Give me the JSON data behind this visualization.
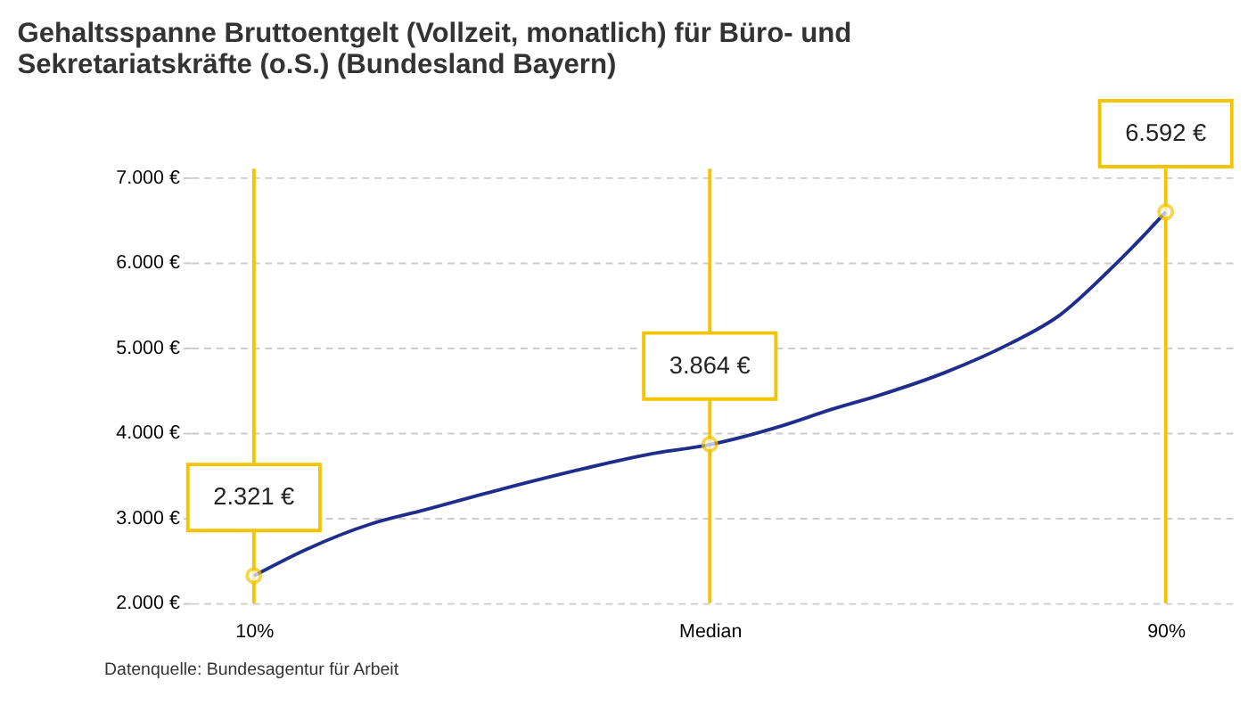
{
  "chart_data": {
    "type": "line",
    "title": "Gehaltsspanne Bruttoentgelt (Vollzeit, monatlich) für Büro- und Sekretariatskräfte (o.S.) (Bundesland Bayern)",
    "xlim": [
      4.5,
      96
    ],
    "xticks": [
      {
        "value": 10,
        "label": "10%"
      },
      {
        "value": 50,
        "label": "Median"
      },
      {
        "value": 90,
        "label": "90%"
      }
    ],
    "ylim": [
      2000,
      7100
    ],
    "yticks": [
      {
        "value": 2000,
        "label": "2.000 €"
      },
      {
        "value": 3000,
        "label": "3.000 €"
      },
      {
        "value": 4000,
        "label": "4.000 €"
      },
      {
        "value": 5000,
        "label": "5.000 €"
      },
      {
        "value": 6000,
        "label": "6.000 €"
      },
      {
        "value": 7000,
        "label": "7.000 €"
      }
    ],
    "grid": "y",
    "series": [
      {
        "color": "#1f2d8c",
        "marker": "none",
        "x": [
          10,
          14.6,
          20.3,
          24.6,
          31.8,
          39,
          44.8,
          50,
          56.3,
          60.6,
          64.9,
          70.7,
          76.4,
          80.7,
          85,
          87.9,
          90
        ],
        "values": [
          2320,
          2630,
          2930,
          3080,
          3340,
          3580,
          3750,
          3860,
          4080,
          4270,
          4440,
          4710,
          5050,
          5380,
          5900,
          6290,
          6590
        ]
      },
      {
        "type": "scatter",
        "color": "#f5c400",
        "marker": "circle",
        "x": [
          10,
          50,
          90
        ],
        "values": [
          2321,
          3864,
          6592
        ],
        "value_labels": [
          "2.321 €",
          "3.864 €",
          "6.592 €"
        ]
      }
    ],
    "ref_lines": [
      {
        "axis": "x",
        "value": 10,
        "color": "#f5c400"
      },
      {
        "axis": "x",
        "value": 50,
        "color": "#f5c400"
      },
      {
        "axis": "x",
        "value": 90,
        "color": "#f5c400"
      }
    ],
    "annotations": [
      "Datenquelle: Bundesagentur für Arbeit"
    ]
  }
}
